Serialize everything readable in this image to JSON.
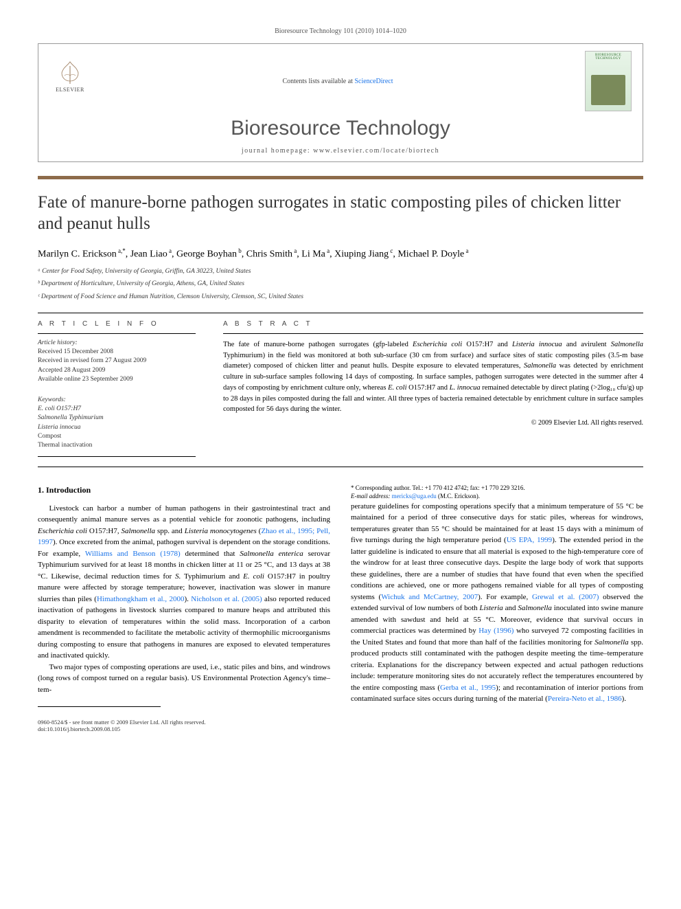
{
  "topline": "Bioresource Technology 101 (2010) 1014–1020",
  "header": {
    "contents_prefix": "Contents lists available at ",
    "contents_link": "ScienceDirect",
    "journal": "Bioresource Technology",
    "homepage": "journal homepage: www.elsevier.com/locate/biortech",
    "publisher": "ELSEVIER",
    "cover_title": "BIORESOURCE TECHNOLOGY"
  },
  "title": "Fate of manure-borne pathogen surrogates in static composting piles of chicken litter and peanut hulls",
  "authors_html": "Marilyn C. Erickson<sup> a,*</sup>, Jean Liao<sup> a</sup>, George Boyhan<sup> b</sup>, Chris Smith<sup> a</sup>, Li Ma<sup> a</sup>, Xiuping Jiang<sup> c</sup>, Michael P. Doyle<sup> a</sup>",
  "affiliations": [
    "ᵃ Center for Food Safety, University of Georgia, Griffin, GA 30223, United States",
    "ᵇ Department of Horticulture, University of Georgia, Athens, GA, United States",
    "ᶜ Department of Food Science and Human Nutrition, Clemson University, Clemson, SC, United States"
  ],
  "article_info": {
    "hdr": "A R T I C L E   I N F O",
    "history_hdr": "Article history:",
    "history": [
      "Received 15 December 2008",
      "Received in revised form 27 August 2009",
      "Accepted 28 August 2009",
      "Available online 23 September 2009"
    ],
    "kw_hdr": "Keywords:",
    "keywords": [
      "E. coli O157:H7",
      "Salmonella Typhimurium",
      "Listeria innocua",
      "Compost",
      "Thermal inactivation"
    ]
  },
  "abstract": {
    "hdr": "A B S T R A C T",
    "text": "The fate of manure-borne pathogen surrogates (gfp-labeled <em>Escherichia coli</em> O157:H7 and <em>Listeria innocua</em> and avirulent <em>Salmonella</em> Typhimurium) in the field was monitored at both sub-surface (30 cm from surface) and surface sites of static composting piles (3.5-m base diameter) composed of chicken litter and peanut hulls. Despite exposure to elevated temperatures, <em>Salmonella</em> was detected by enrichment culture in sub-surface samples following 14 days of composting. In surface samples, pathogen surrogates were detected in the summer after 4 days of composting by enrichment culture only, whereas <em>E. coli</em> O157:H7 and <em>L. innocua</em> remained detectable by direct plating (>2log₁₀ cfu/g) up to 28 days in piles composted during the fall and winter. All three types of bacteria remained detectable by enrichment culture in surface samples composted for 56 days during the winter.",
    "copyright": "© 2009 Elsevier Ltd. All rights reserved."
  },
  "body": {
    "intro_hdr": "1. Introduction",
    "p1": "Livestock can harbor a number of human pathogens in their gastrointestinal tract and consequently animal manure serves as a potential vehicle for zoonotic pathogens, including <em>Escherichia coli</em> O157:H7, <em>Salmonella</em> spp. and <em>Listeria monocytogenes</em> (<a>Zhao et al., 1995; Pell, 1997</a>). Once excreted from the animal, pathogen survival is dependent on the storage conditions. For example, <a>Williams and Benson (1978)</a> determined that <em>Salmonella enterica</em> serovar Typhimurium survived for at least 18 months in chicken litter at 11 or 25 °C, and 13 days at 38 °C. Likewise, decimal reduction times for <em>S.</em> Typhimurium and <em>E. coli</em> O157:H7 in poultry manure were affected by storage temperature; however, inactivation was slower in manure slurries than piles (<a>Himathongkham et al., 2000</a>). <a>Nicholson et al. (2005)</a> also reported reduced inactivation of pathogens in livestock slurries compared to manure heaps and attributed this disparity to elevation of temperatures within the solid mass. Incorporation of a carbon amendment is recommended to facilitate the metabolic activity of thermophilic microorganisms during composting to ensure that pathogens in manures are exposed to elevated temperatures and inactivated quickly.",
    "p2": "Two major types of composting operations are used, i.e., static piles and bins, and windrows (long rows of compost turned on a regular basis). US Environmental Protection Agency's time–tem-",
    "p2cont": "perature guidelines for composting operations specify that a minimum temperature of 55 °C be maintained for a period of three consecutive days for static piles, whereas for windrows, temperatures greater than 55 °C should be maintained for at least 15 days with a minimum of five turnings during the high temperature period (<a>US EPA, 1999</a>). The extended period in the latter guideline is indicated to ensure that all material is exposed to the high-temperature core of the windrow for at least three consecutive days. Despite the large body of work that supports these guidelines, there are a number of studies that have found that even when the specified conditions are achieved, one or more pathogens remained viable for all types of composting systems (<a>Wichuk and McCartney, 2007</a>). For example, <a>Grewal et al. (2007)</a> observed the extended survival of low numbers of both <em>Listeria</em> and <em>Salmonella</em> inoculated into swine manure amended with sawdust and held at 55 °C. Moreover, evidence that survival occurs in commercial practices was determined by <a>Hay (1996)</a> who surveyed 72 composting facilities in the United States and found that more than half of the facilities monitoring for <em>Salmonella</em> spp. produced products still contaminated with the pathogen despite meeting the time–temperature criteria. Explanations for the discrepancy between expected and actual pathogen reductions include: temperature monitoring sites do not accurately reflect the temperatures encountered by the entire composting mass (<a>Gerba et al., 1995</a>); and recontamination of interior portions from contaminated surface sites occurs during turning of the material (<a>Pereira-Neto et al., 1986</a>)."
  },
  "footnote": {
    "corr": "* Corresponding author. Tel.: +1 770 412 4742; fax: +1 770 229 3216.",
    "email_label": "E-mail address:",
    "email": "mericks@uga.edu",
    "email_suffix": "(M.C. Erickson)."
  },
  "footer": {
    "left1": "0960-8524/$ - see front matter © 2009 Elsevier Ltd. All rights reserved.",
    "left2": "doi:10.1016/j.biortech.2009.08.105"
  },
  "colors": {
    "rule": "#8d6b4a",
    "link": "#1a73e8"
  }
}
